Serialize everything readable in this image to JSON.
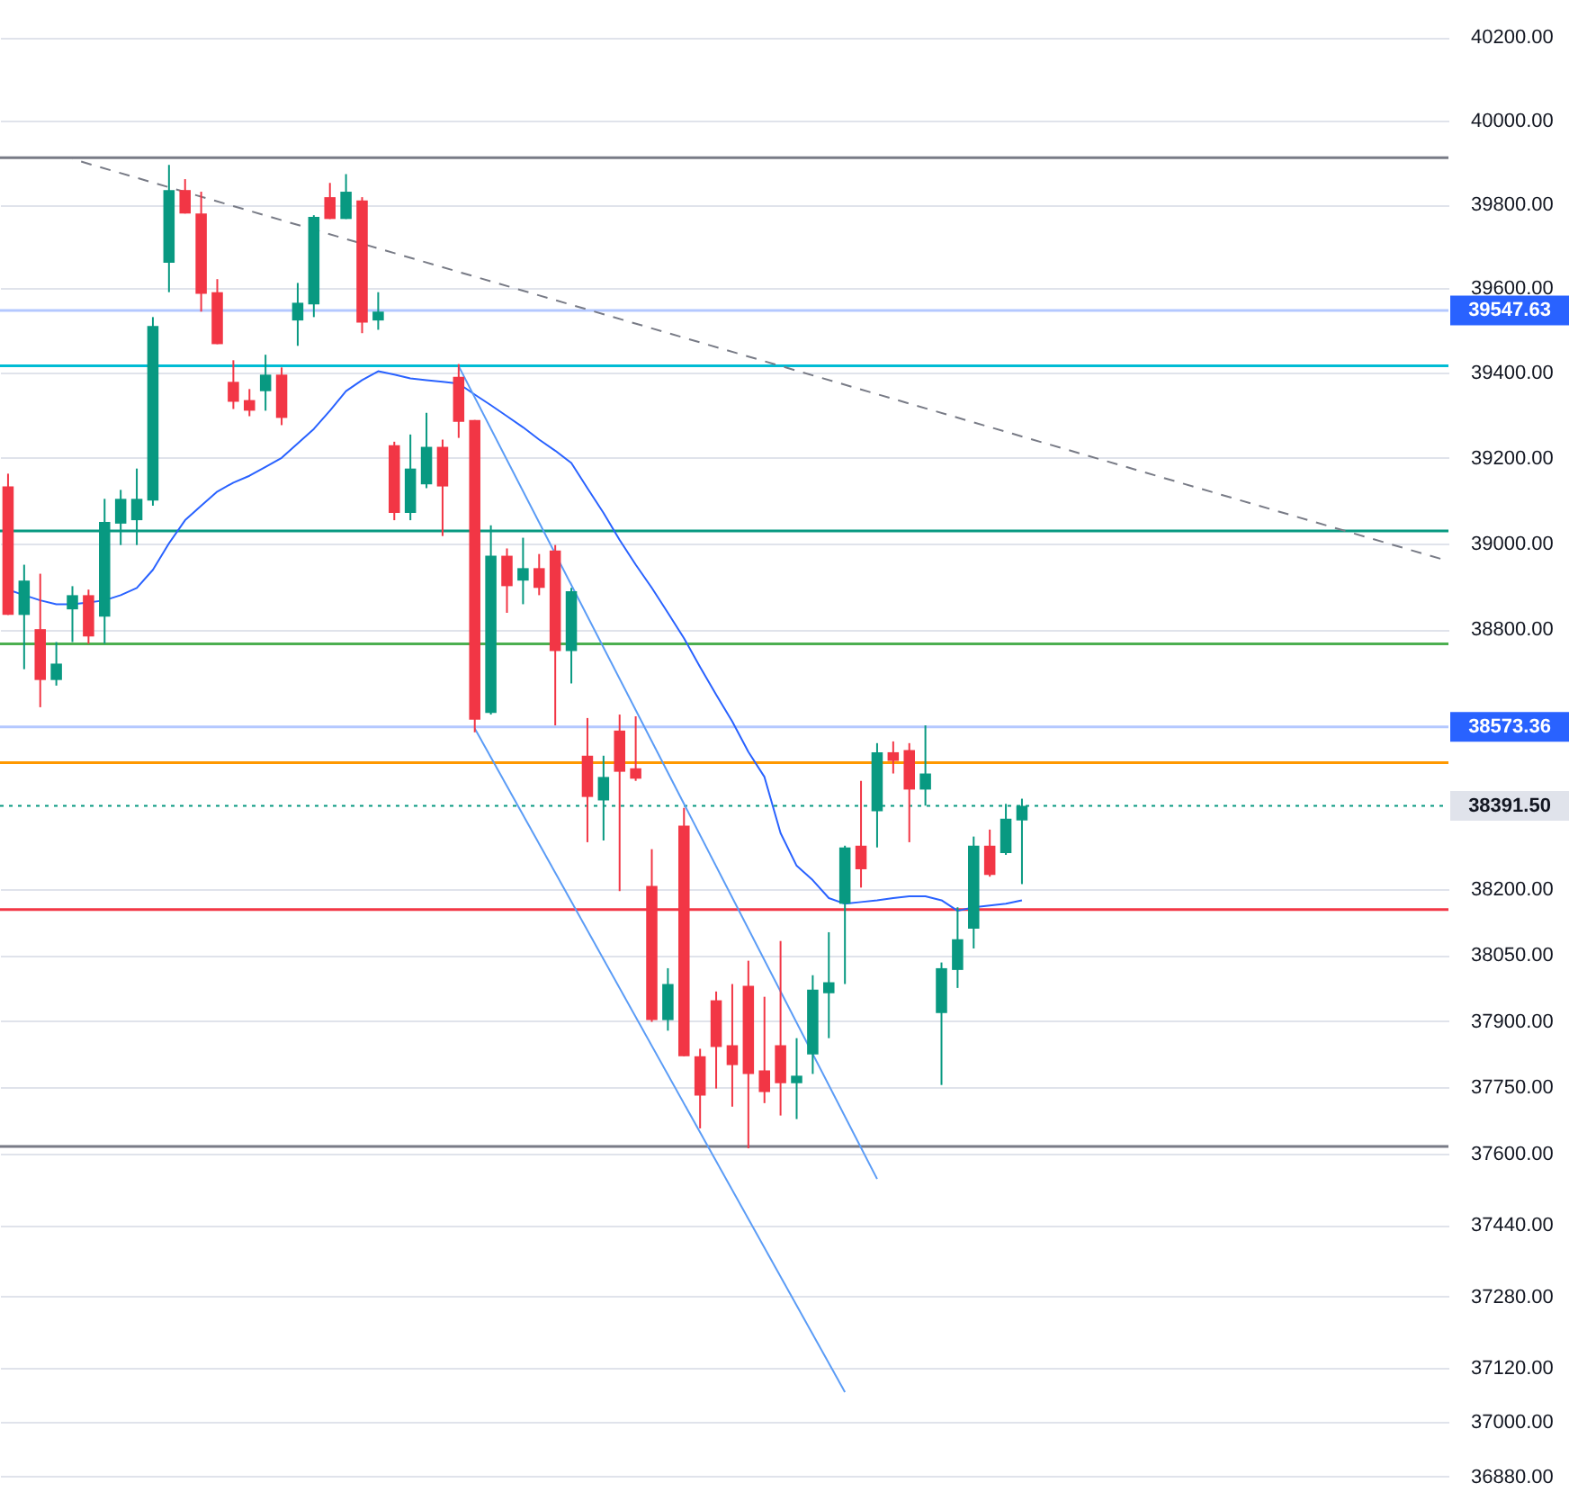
{
  "chart_data": {
    "type": "candlestick",
    "categories": [
      null,
      null,
      null,
      null,
      null,
      null,
      null,
      null,
      null,
      null,
      null,
      null,
      null,
      null,
      null,
      null,
      null,
      null,
      null,
      null,
      null,
      null,
      null,
      null,
      null,
      null,
      null,
      null,
      null,
      null,
      null,
      null,
      null,
      null,
      null,
      null,
      null,
      null,
      null,
      null,
      null,
      null,
      null,
      null,
      null,
      null,
      null,
      null,
      null,
      null,
      null,
      null,
      null,
      null,
      null,
      null,
      null,
      null,
      null,
      null,
      null,
      null,
      null,
      null,
      null,
      null,
      null,
      null,
      null,
      null,
      null,
      null,
      null,
      null,
      null,
      null,
      null,
      null,
      null,
      null,
      null,
      null,
      null,
      null,
      null,
      null,
      null,
      null,
      null,
      null
    ],
    "ohlc": [
      [
        39133,
        39163,
        38833,
        38833
      ],
      [
        38833,
        38950,
        38707,
        38913
      ],
      [
        38800,
        38929,
        38619,
        38682
      ],
      [
        38682,
        38770,
        38669,
        38720
      ],
      [
        38846,
        38900,
        38770,
        38879
      ],
      [
        38879,
        38892,
        38766,
        38783
      ],
      [
        38829,
        39104,
        38766,
        39050
      ],
      [
        39046,
        39125,
        38996,
        39104
      ],
      [
        39054,
        39175,
        38996,
        39104
      ],
      [
        39100,
        39532,
        39088,
        39511
      ],
      [
        39661,
        39894,
        39591,
        39834
      ],
      [
        39834,
        39860,
        39778,
        39778
      ],
      [
        39778,
        39830,
        39545,
        39587
      ],
      [
        39591,
        39622,
        39468,
        39468
      ],
      [
        39379,
        39430,
        39315,
        39332
      ],
      [
        39336,
        39362,
        39298,
        39311
      ],
      [
        39357,
        39443,
        39311,
        39396
      ],
      [
        39396,
        39413,
        39277,
        39294
      ],
      [
        39524,
        39613,
        39464,
        39566
      ],
      [
        39562,
        39774,
        39532,
        39770
      ],
      [
        39817,
        39851,
        39765,
        39765
      ],
      [
        39765,
        39872,
        39765,
        39830
      ],
      [
        39809,
        39817,
        39494,
        39519
      ],
      [
        39524,
        39591,
        39502,
        39545
      ],
      [
        39230,
        39238,
        39054,
        39071
      ],
      [
        39071,
        39255,
        39054,
        39175
      ],
      [
        39138,
        39306,
        39129,
        39226
      ],
      [
        39226,
        39243,
        39017,
        39133
      ],
      [
        39391,
        39421,
        39247,
        39285
      ],
      [
        39289,
        39289,
        38561,
        38590
      ],
      [
        38606,
        39042,
        38602,
        38971
      ],
      [
        38971,
        38988,
        38838,
        38900
      ],
      [
        38913,
        39013,
        38858,
        38942
      ],
      [
        38942,
        38975,
        38879,
        38896
      ],
      [
        38983,
        38996,
        38577,
        38749
      ],
      [
        38749,
        38896,
        38674,
        38888
      ],
      [
        38507,
        38594,
        38308,
        38412
      ],
      [
        38404,
        38507,
        38312,
        38458
      ],
      [
        38565,
        38602,
        38196,
        38470
      ],
      [
        38478,
        38598,
        38449,
        38454
      ],
      [
        38208,
        38292,
        37898,
        37902
      ],
      [
        37902,
        38020,
        37878,
        37984
      ],
      [
        38346,
        38387,
        37820,
        37820
      ],
      [
        37820,
        37837,
        37657,
        37731
      ],
      [
        37947,
        37967,
        37747,
        37841
      ],
      [
        37845,
        37984,
        37706,
        37800
      ],
      [
        37980,
        38037,
        37612,
        37780
      ],
      [
        37788,
        37955,
        37714,
        37739
      ],
      [
        37845,
        38082,
        37686,
        37759
      ],
      [
        37759,
        37861,
        37678,
        37776
      ],
      [
        37824,
        38004,
        37780,
        37971
      ],
      [
        37963,
        38102,
        37861,
        37988
      ],
      [
        38167,
        38300,
        37984,
        38296
      ],
      [
        38300,
        38449,
        38204,
        38246
      ],
      [
        38379,
        38536,
        38296,
        38515
      ],
      [
        38515,
        38540,
        38466,
        38495
      ],
      [
        38520,
        38536,
        38308,
        38429
      ],
      [
        38429,
        38577,
        38392,
        38466
      ],
      [
        37918,
        38033,
        37755,
        38020
      ],
      [
        38016,
        38159,
        37975,
        38086
      ],
      [
        38110,
        38321,
        38065,
        38300
      ],
      [
        38300,
        38337,
        38229,
        38233
      ],
      [
        38283,
        38396,
        38279,
        38362
      ],
      [
        38358,
        38408,
        38212,
        38391.5
      ],
      null,
      null,
      null,
      null,
      null,
      null,
      null,
      null,
      null,
      null,
      null,
      null,
      null,
      null,
      null,
      null,
      null,
      null,
      null,
      null,
      null,
      null,
      null,
      null,
      null,
      null
    ],
    "colors": [
      "#f23645",
      "#089981",
      "#f23645",
      "#089981",
      "#089981",
      "#f23645",
      "#089981",
      "#089981",
      "#089981",
      "#089981",
      "#089981",
      "#f23645",
      "#f23645",
      "#f23645",
      "#f23645",
      "#f23645",
      "#089981",
      "#f23645",
      "#089981",
      "#089981",
      "#f23645",
      "#089981",
      "#f23645",
      "#089981",
      "#f23645",
      "#089981",
      "#089981",
      "#f23645",
      "#f23645",
      "#f23645",
      "#089981",
      "#f23645",
      "#089981",
      "#f23645",
      "#f23645",
      "#089981",
      "#f23645",
      "#089981",
      "#f23645",
      "#f23645",
      "#f23645",
      "#089981",
      "#f23645",
      "#f23645",
      "#f23645",
      "#f23645",
      "#f23645",
      "#f23645",
      "#f23645",
      "#089981",
      "#089981",
      "#089981",
      "#089981",
      "#f23645",
      "#089981",
      "#f23645",
      "#f23645",
      "#089981",
      "#089981",
      "#089981",
      "#089981",
      "#f23645",
      "#089981",
      "#089981",
      null,
      null,
      null,
      null,
      null,
      null,
      null,
      null,
      null,
      null,
      null,
      null,
      null,
      null,
      null,
      null,
      null,
      null,
      null,
      null,
      null,
      null,
      null,
      null,
      null,
      null
    ],
    "series": [
      {
        "type": "line",
        "color": "#2962ff",
        "values": [
          38892,
          38879,
          38867,
          38858,
          38858,
          38862,
          38867,
          38879,
          38896,
          38938,
          39000,
          39054,
          39088,
          39121,
          39142,
          39158,
          39179,
          39200,
          39234,
          39268,
          39311,
          39357,
          39383,
          39404,
          39396,
          39387,
          39383,
          39379,
          39375,
          39349,
          39324,
          39298,
          39272,
          39243,
          39217,
          39188,
          39129,
          39071,
          39008,
          38950,
          38896,
          38838,
          38779,
          38712,
          38648,
          38586,
          38516,
          38458,
          38329,
          38254,
          38221,
          38180,
          38167,
          38171,
          38175,
          38180,
          38184,
          38184,
          38175,
          38151,
          38159,
          38163,
          38167,
          38175,
          null,
          null,
          null,
          null,
          null,
          null,
          null,
          null,
          null,
          null,
          null,
          null,
          null,
          null,
          null,
          null,
          null,
          null,
          null,
          null,
          null,
          null,
          null,
          null,
          null,
          null
        ]
      },
      {
        "type": "line",
        "color": "#787b86",
        "line_style": "dashed",
        "values": [
          null,
          null,
          null,
          null,
          39908,
          null,
          null,
          null,
          null,
          null,
          null,
          null,
          null,
          null,
          null,
          null,
          null,
          null,
          null,
          null,
          null,
          null,
          null,
          null,
          null,
          null,
          null,
          null,
          null,
          null,
          null,
          null,
          null,
          null,
          null,
          null,
          null,
          null,
          null,
          null,
          null,
          null,
          null,
          null,
          null,
          null,
          null,
          null,
          null,
          null,
          null,
          null,
          null,
          null,
          null,
          null,
          null,
          null,
          null,
          null,
          null,
          null,
          null,
          null,
          null,
          null,
          null,
          null,
          null,
          null,
          null,
          null,
          null,
          null,
          null,
          null,
          null,
          null,
          null,
          null,
          null,
          null,
          null,
          null,
          null,
          null,
          null,
          null,
          null,
          38964
        ]
      },
      {
        "type": "line",
        "color": "#5b9cf6",
        "values": [
          null,
          null,
          null,
          null,
          null,
          null,
          null,
          null,
          null,
          null,
          null,
          null,
          null,
          null,
          null,
          null,
          null,
          null,
          null,
          null,
          null,
          null,
          null,
          null,
          null,
          null,
          null,
          null,
          39416,
          null,
          null,
          null,
          null,
          null,
          null,
          null,
          null,
          null,
          null,
          null,
          null,
          null,
          null,
          null,
          null,
          null,
          null,
          null,
          null,
          null,
          null,
          null,
          null,
          null,
          37543,
          null,
          null,
          null,
          null,
          null,
          null,
          null,
          null,
          null,
          null,
          null,
          null,
          null,
          null,
          null,
          null,
          null,
          null,
          null,
          null,
          null,
          null,
          null,
          null,
          null,
          null,
          null,
          null,
          null,
          null,
          null,
          null,
          null,
          null,
          null
        ]
      },
      {
        "type": "line",
        "color": "#5b9cf6",
        "values": [
          null,
          null,
          null,
          null,
          null,
          null,
          null,
          null,
          null,
          null,
          null,
          null,
          null,
          null,
          null,
          null,
          null,
          null,
          null,
          null,
          null,
          null,
          null,
          null,
          null,
          null,
          null,
          null,
          null,
          38570,
          null,
          null,
          null,
          null,
          null,
          null,
          null,
          null,
          null,
          null,
          null,
          null,
          null,
          null,
          null,
          null,
          null,
          null,
          null,
          null,
          null,
          null,
          37067,
          null,
          null,
          null,
          null,
          null,
          null,
          null,
          null,
          null,
          null,
          null,
          null,
          null,
          null,
          null,
          null,
          null,
          null,
          null,
          null,
          null,
          null,
          null,
          null,
          null,
          null,
          null,
          null,
          null,
          null,
          null,
          null,
          null,
          null,
          null,
          null,
          null
        ]
      }
    ],
    "ylim": [
      36806,
      40290
    ],
    "log": true,
    "yticks": [
      {
        "value": 36880,
        "label": "36880.00"
      },
      {
        "value": 37000,
        "label": "37000.00"
      },
      {
        "value": 37120,
        "label": "37120.00"
      },
      {
        "value": 37280,
        "label": "37280.00"
      },
      {
        "value": 37440,
        "label": "37440.00"
      },
      {
        "value": 37600,
        "label": "37600.00"
      },
      {
        "value": 37750,
        "label": "37750.00"
      },
      {
        "value": 37900,
        "label": "37900.00"
      },
      {
        "value": 38050,
        "label": "38050.00"
      },
      {
        "value": 38200,
        "label": "38200.00"
      },
      {
        "value": 38800,
        "label": "38800.00"
      },
      {
        "value": 39000,
        "label": "39000.00"
      },
      {
        "value": 39200,
        "label": "39200.00"
      },
      {
        "value": 39400,
        "label": "39400.00"
      },
      {
        "value": 39600,
        "label": "39600.00"
      },
      {
        "value": 39800,
        "label": "39800.00"
      },
      {
        "value": 40000,
        "label": "40000.00"
      },
      {
        "value": 40200,
        "label": "40200.00"
      }
    ],
    "grid": "y",
    "tick_labels": "y",
    "ref_lines": [
      {
        "axis": "y",
        "value": 39911,
        "color": "#787b86"
      },
      {
        "axis": "y",
        "value": 39417,
        "color": "#00bcd4"
      },
      {
        "axis": "y",
        "value": 39029,
        "color": "#089981"
      },
      {
        "axis": "y",
        "value": 38766,
        "color": "#4caf50"
      },
      {
        "axis": "y",
        "value": 38491,
        "color": "#ff9800"
      },
      {
        "axis": "y",
        "value": 38154,
        "color": "#f23645"
      },
      {
        "axis": "y",
        "value": 37616,
        "color": "#787b86"
      },
      {
        "axis": "y",
        "value": 38391.5,
        "label": "38391.50",
        "color": "#089981",
        "line_style": "dotted"
      },
      {
        "axis": "y",
        "value": 39547.63,
        "label": "39547.63",
        "color": "#2962ff"
      },
      {
        "axis": "y",
        "value": 38573.36,
        "label": "38573.36",
        "color": "#2962ff"
      }
    ]
  }
}
